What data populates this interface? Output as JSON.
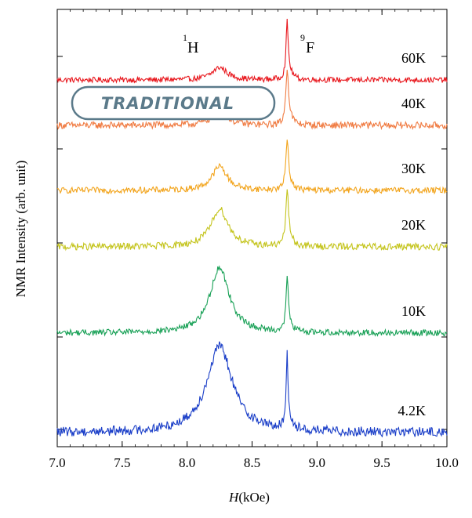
{
  "badge": {
    "text": "TRADITIONAL",
    "color": "#5b7a8a"
  },
  "chart_data": {
    "type": "line",
    "title": "",
    "xlabel_italic": "H",
    "xlabel_rest": "(kOe)",
    "ylabel": "NMR Intensity (arb. unit)",
    "xlim": [
      7.0,
      10.0
    ],
    "xticks": [
      "7.0",
      "7.5",
      "8.0",
      "8.5",
      "9.0",
      "9.5",
      "10.0"
    ],
    "y_ticks_labeled": false,
    "grid": false,
    "peak_labels": [
      {
        "sup": "1",
        "symbol": "H",
        "x": 8.25
      },
      {
        "sup": "9",
        "symbol": "F",
        "x": 8.77
      }
    ],
    "series": [
      {
        "name": "60K",
        "color": "#e8161c",
        "offset": 5,
        "h_peak": 0.18,
        "h_width": 0.07,
        "f_peak": 0.78,
        "f_width": 0.01,
        "noise": 0.04
      },
      {
        "name": "40K",
        "color": "#f07a40",
        "offset": 4,
        "h_peak": 0.22,
        "h_width": 0.07,
        "f_peak": 0.78,
        "f_width": 0.012,
        "noise": 0.05
      },
      {
        "name": "30K",
        "color": "#f2a41c",
        "offset": 3,
        "h_peak": 0.35,
        "h_width": 0.07,
        "f_peak": 0.7,
        "f_width": 0.012,
        "noise": 0.045
      },
      {
        "name": "20K",
        "color": "#c4c41c",
        "offset": 2,
        "h_peak": 0.55,
        "h_width": 0.08,
        "f_peak": 0.78,
        "f_width": 0.012,
        "noise": 0.05
      },
      {
        "name": "10K",
        "color": "#17a055",
        "offset": 1,
        "h_peak": 0.95,
        "h_width": 0.09,
        "f_peak": 0.75,
        "f_width": 0.01,
        "noise": 0.045
      },
      {
        "name": "4.2K",
        "color": "#1a3ec8",
        "offset": 0,
        "h_peak": 1.25,
        "h_width": 0.12,
        "f_peak": 1.05,
        "f_width": 0.008,
        "noise": 0.07
      }
    ]
  }
}
